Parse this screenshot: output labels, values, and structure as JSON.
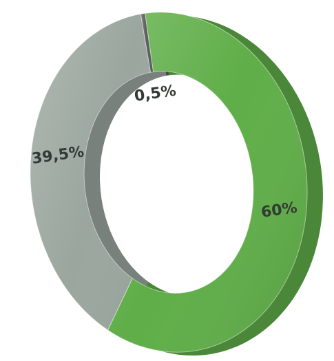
{
  "chart_data": {
    "type": "donut",
    "values": [
      60,
      39.5,
      0.5
    ],
    "value_labels": [
      "60%",
      "39,5%",
      "0,5%"
    ],
    "colors": [
      "#5fae48",
      "#9aa69e",
      "#5a5d5c"
    ]
  }
}
